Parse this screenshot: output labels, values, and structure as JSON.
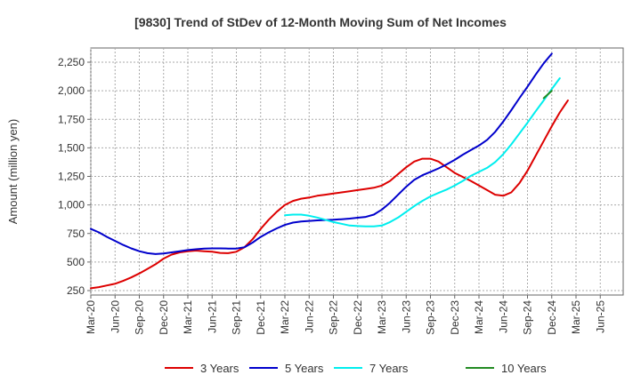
{
  "chart_data": {
    "type": "line",
    "title": "[9830]  Trend of StDev of 12-Month Moving Sum of Net Incomes",
    "ylabel": "Amount (million yen)",
    "xlabel": "",
    "ylim": [
      250,
      2400
    ],
    "y_ticks": [
      250,
      500,
      750,
      1000,
      1250,
      1500,
      1750,
      2000,
      2250
    ],
    "y_tick_labels": [
      "250",
      "500",
      "750",
      "1,000",
      "1,250",
      "1,500",
      "1,750",
      "2,000",
      "2,250"
    ],
    "x_tick_labels": [
      "Mar-20",
      "Jun-20",
      "Sep-20",
      "Dec-20",
      "Mar-21",
      "Jun-21",
      "Sep-21",
      "Dec-21",
      "Mar-22",
      "Jun-22",
      "Sep-22",
      "Dec-22",
      "Mar-23",
      "Jun-23",
      "Sep-23",
      "Dec-23",
      "Mar-24",
      "Jun-24",
      "Sep-24",
      "Dec-24",
      "Mar-25",
      "Jun-25"
    ],
    "grid": true,
    "legend_position": "bottom",
    "series": [
      {
        "name": "3 Years",
        "color": "#dd0000",
        "start_index": 0,
        "values": [
          270,
          280,
          295,
          310,
          335,
          365,
          400,
          440,
          480,
          530,
          565,
          585,
          595,
          600,
          595,
          590,
          580,
          578,
          590,
          630,
          700,
          790,
          870,
          940,
          1000,
          1035,
          1055,
          1065,
          1080,
          1090,
          1100,
          1110,
          1120,
          1130,
          1140,
          1150,
          1170,
          1210,
          1270,
          1330,
          1380,
          1405,
          1405,
          1380,
          1330,
          1280,
          1245,
          1210,
          1170,
          1130,
          1090,
          1080,
          1110,
          1190,
          1300,
          1430,
          1560,
          1690,
          1810,
          1915
        ]
      },
      {
        "name": "5 Years",
        "color": "#0000cc",
        "start_index": 0,
        "values": [
          790,
          760,
          720,
          685,
          650,
          620,
          595,
          578,
          570,
          575,
          585,
          595,
          605,
          612,
          617,
          620,
          620,
          618,
          618,
          630,
          670,
          720,
          760,
          795,
          825,
          845,
          855,
          860,
          865,
          868,
          870,
          875,
          880,
          888,
          895,
          915,
          960,
          1020,
          1090,
          1160,
          1220,
          1260,
          1290,
          1320,
          1355,
          1395,
          1440,
          1480,
          1520,
          1570,
          1640,
          1730,
          1830,
          1935,
          2035,
          2140,
          2240,
          2325
        ]
      },
      {
        "name": "7 Years",
        "color": "#00eeee",
        "start_index": 24,
        "values": [
          910,
          915,
          915,
          905,
          890,
          870,
          850,
          835,
          820,
          815,
          812,
          812,
          820,
          850,
          890,
          940,
          990,
          1035,
          1075,
          1105,
          1135,
          1170,
          1210,
          1255,
          1290,
          1325,
          1375,
          1445,
          1530,
          1625,
          1720,
          1820,
          1915,
          2015,
          2110
        ]
      },
      {
        "name": "10 Years",
        "color": "#228b22",
        "start_index": 56,
        "values": [
          1935,
          2000
        ]
      }
    ]
  }
}
